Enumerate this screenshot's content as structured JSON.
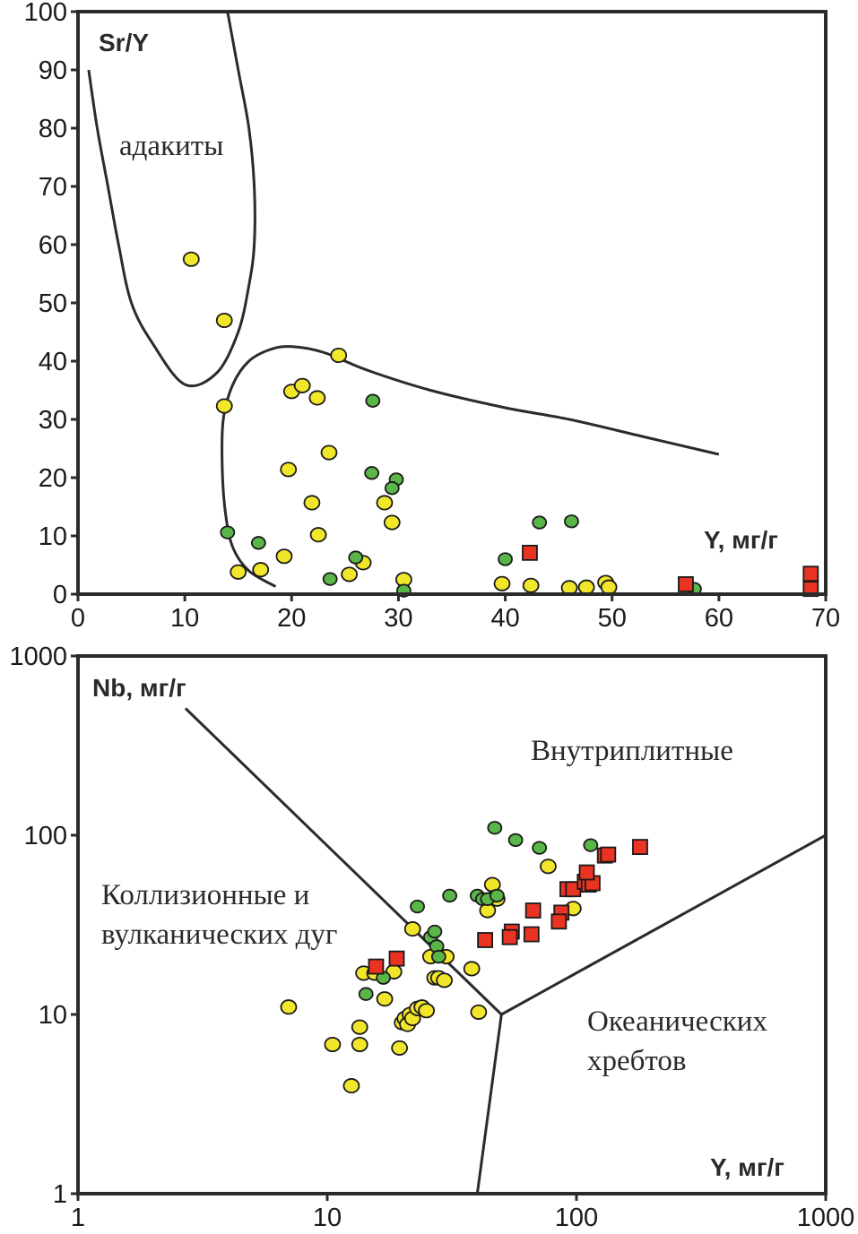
{
  "chart_data": [
    {
      "type": "scatter",
      "title": "",
      "xlabel": "Y, мг/г",
      "ylabel": "Sr/Y",
      "xscale": "linear",
      "yscale": "linear",
      "xlim": [
        0,
        70
      ],
      "ylim": [
        0,
        100
      ],
      "xticks": [
        0,
        10,
        20,
        30,
        40,
        50,
        60,
        70
      ],
      "yticks": [
        0,
        10,
        20,
        30,
        40,
        50,
        60,
        70,
        80,
        90,
        100
      ],
      "xtick_labels": [
        "0",
        "10",
        "20",
        "30",
        "40",
        "50",
        "60",
        "70"
      ],
      "ytick_labels": [
        "0",
        "10",
        "20",
        "30",
        "40",
        "50",
        "60",
        "70",
        "80",
        "90",
        "100"
      ],
      "grid": false,
      "legend": null,
      "annotations": [
        {
          "text": "адакиты",
          "x": 14,
          "y": 77
        }
      ],
      "field_boundaries": [
        {
          "name": "adakite-field",
          "points": [
            [
              1,
              90
            ],
            [
              1.8,
              80
            ],
            [
              2.8,
              70
            ],
            [
              3.8,
              60
            ],
            [
              5,
              50
            ],
            [
              7,
              43
            ],
            [
              10,
              36
            ],
            [
              13,
              38
            ],
            [
              15,
              45
            ],
            [
              16,
              53
            ],
            [
              16.5,
              60
            ],
            [
              16.5,
              70
            ],
            [
              16,
              80
            ],
            [
              15,
              90
            ],
            [
              14,
              100
            ]
          ]
        },
        {
          "name": "normal-arc-field",
          "points": [
            [
              18.5,
              1.3
            ],
            [
              16,
              4
            ],
            [
              14.5,
              8
            ],
            [
              13.8,
              14
            ],
            [
              13.5,
              22
            ],
            [
              13.6,
              30
            ],
            [
              14.5,
              36
            ],
            [
              16,
              40
            ],
            [
              18,
              42
            ],
            [
              20,
              42.5
            ],
            [
              23,
              41.5
            ],
            [
              27,
              38.5
            ],
            [
              33,
              35
            ],
            [
              40,
              32
            ],
            [
              46,
              30
            ],
            [
              53,
              27
            ],
            [
              60,
              24
            ]
          ]
        }
      ],
      "series": [
        {
          "name": "yellow-circles",
          "marker": "circle",
          "color": "#f2e62a",
          "points": [
            [
              10.6,
              57.5
            ],
            [
              13.7,
              47
            ],
            [
              13.7,
              32.3
            ],
            [
              20,
              34.8
            ],
            [
              21,
              35.8
            ],
            [
              22.4,
              33.7
            ],
            [
              24.4,
              41
            ],
            [
              19.7,
              21.4
            ],
            [
              23.5,
              24.3
            ],
            [
              21.9,
              15.7
            ],
            [
              22.5,
              10.2
            ],
            [
              19.3,
              6.5
            ],
            [
              15,
              3.8
            ],
            [
              17.1,
              4.2
            ],
            [
              25.4,
              3.4
            ],
            [
              26.7,
              5.4
            ],
            [
              28.7,
              15.7
            ],
            [
              29.4,
              12.3
            ],
            [
              30.5,
              2.5
            ],
            [
              39.7,
              1.8
            ],
            [
              42.4,
              1.5
            ],
            [
              46,
              1.1
            ],
            [
              47.6,
              1.2
            ],
            [
              49.4,
              2
            ],
            [
              49.7,
              1.2
            ]
          ]
        },
        {
          "name": "green-circles",
          "marker": "circle",
          "color": "#5ab648",
          "points": [
            [
              27.6,
              33.2
            ],
            [
              27.5,
              20.8
            ],
            [
              29.8,
              19.7
            ],
            [
              29.4,
              18.2
            ],
            [
              14,
              10.6
            ],
            [
              16.9,
              8.8
            ],
            [
              26,
              6.3
            ],
            [
              23.6,
              2.6
            ],
            [
              30.5,
              0.6
            ],
            [
              43.2,
              12.3
            ],
            [
              46.2,
              12.5
            ],
            [
              40,
              6
            ],
            [
              57.7,
              0.9
            ]
          ]
        },
        {
          "name": "red-squares",
          "marker": "square",
          "color": "#ea3323",
          "points": [
            [
              42.3,
              7.1
            ],
            [
              56.9,
              1.7
            ],
            [
              68.6,
              3.5
            ],
            [
              68.6,
              0.9
            ]
          ]
        }
      ]
    },
    {
      "type": "scatter",
      "title": "",
      "xlabel": "Y, мг/г",
      "ylabel": "Nb, мг/г",
      "xscale": "log",
      "yscale": "log",
      "xlim": [
        1,
        1000
      ],
      "ylim": [
        1,
        1000
      ],
      "xticks": [
        1,
        10,
        100,
        1000
      ],
      "yticks": [
        1,
        10,
        100,
        1000
      ],
      "xtick_labels": [
        "1",
        "10",
        "100",
        "1000"
      ],
      "ytick_labels": [
        "1",
        "10",
        "100",
        "1000"
      ],
      "grid": false,
      "legend": null,
      "annotations": [
        {
          "text": "Внутриплитные",
          "x": 70,
          "y": 500
        },
        {
          "text": "Коллизионные и",
          "x": 1.2,
          "y": 60
        },
        {
          "text": "вулканических дуг",
          "x": 1.2,
          "y": 30
        },
        {
          "text": "Океанических",
          "x": 110,
          "y": 10
        },
        {
          "text": "хребтов",
          "x": 110,
          "y": 5
        }
      ],
      "field_boundaries": [
        {
          "name": "vag-wpg-boundary",
          "points": [
            [
              2.7,
              510
            ],
            [
              50,
              10
            ]
          ]
        },
        {
          "name": "orb-wpg-boundary",
          "points": [
            [
              50,
              10
            ],
            [
              1000,
              100
            ]
          ]
        },
        {
          "name": "vag-orb-boundary",
          "points": [
            [
              50,
              10
            ],
            [
              40,
              1
            ]
          ]
        }
      ],
      "series": [
        {
          "name": "yellow-circles",
          "marker": "circle",
          "color": "#f2e62a",
          "points": [
            [
              7,
              11
            ],
            [
              10.5,
              6.8
            ],
            [
              12.5,
              4
            ],
            [
              13.5,
              8.5
            ],
            [
              13.5,
              6.8
            ],
            [
              14,
              17
            ],
            [
              15.5,
              17
            ],
            [
              17,
              12.2
            ],
            [
              18.5,
              17.3
            ],
            [
              19.5,
              6.5
            ],
            [
              20,
              9
            ],
            [
              20.5,
              9.5
            ],
            [
              21,
              8.8
            ],
            [
              21.5,
              10
            ],
            [
              22,
              9.5
            ],
            [
              23,
              10.8
            ],
            [
              24,
              11
            ],
            [
              25,
              10.5
            ],
            [
              22,
              30
            ],
            [
              26,
              21
            ],
            [
              27,
              16
            ],
            [
              28,
              16
            ],
            [
              29.5,
              15.5
            ],
            [
              30,
              21
            ],
            [
              38,
              18
            ],
            [
              40.5,
              10.3
            ],
            [
              44,
              38
            ],
            [
              46,
              53
            ],
            [
              47,
              45
            ],
            [
              48,
              44
            ],
            [
              77,
              67
            ],
            [
              97,
              39
            ]
          ]
        },
        {
          "name": "green-circles",
          "marker": "circle",
          "color": "#5ab648",
          "points": [
            [
              14.3,
              13
            ],
            [
              16.8,
              16
            ],
            [
              23,
              40
            ],
            [
              26,
              27
            ],
            [
              27,
              29
            ],
            [
              27.5,
              24
            ],
            [
              28,
              21
            ],
            [
              31,
              46
            ],
            [
              40,
              46
            ],
            [
              42,
              44
            ],
            [
              44,
              44
            ],
            [
              48,
              46
            ],
            [
              47,
              110
            ],
            [
              57,
              94
            ],
            [
              71,
              85
            ],
            [
              114,
              88
            ]
          ]
        },
        {
          "name": "red-squares",
          "marker": "square",
          "color": "#ea3323",
          "points": [
            [
              15.7,
              18.5
            ],
            [
              19,
              20.5
            ],
            [
              43,
              26
            ],
            [
              55,
              29
            ],
            [
              54,
              27
            ],
            [
              67,
              38
            ],
            [
              66,
              28
            ],
            [
              87,
              37
            ],
            [
              85,
              33
            ],
            [
              92,
              50
            ],
            [
              97,
              50
            ],
            [
              108,
              55
            ],
            [
              112,
              53
            ],
            [
              116,
              54
            ],
            [
              110,
              62
            ],
            [
              130,
              77
            ],
            [
              134,
              78
            ],
            [
              180,
              86
            ]
          ]
        }
      ]
    }
  ]
}
